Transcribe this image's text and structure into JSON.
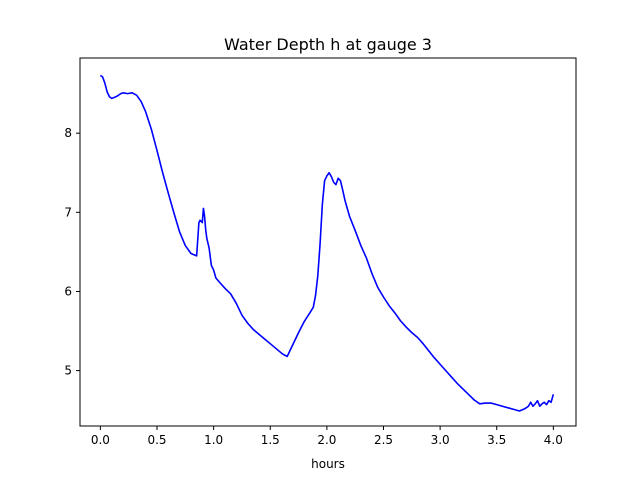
{
  "chart_data": {
    "type": "line",
    "title": "Water Depth h at gauge 3",
    "xlabel": "hours",
    "ylabel": "",
    "xlim": [
      -0.18,
      4.2
    ],
    "ylim": [
      4.3,
      8.95
    ],
    "xticks": [
      0.0,
      0.5,
      1.0,
      1.5,
      2.0,
      2.5,
      3.0,
      3.5,
      4.0
    ],
    "xtick_labels": [
      "0.0",
      "0.5",
      "1.0",
      "1.5",
      "2.0",
      "2.5",
      "3.0",
      "3.5",
      "4.0"
    ],
    "yticks": [
      5,
      6,
      7,
      8
    ],
    "ytick_labels": [
      "5",
      "6",
      "7",
      "8"
    ],
    "grid": false,
    "series": [
      {
        "color": "#0000ff",
        "x": [
          0.0,
          0.02,
          0.04,
          0.06,
          0.08,
          0.1,
          0.12,
          0.15,
          0.18,
          0.2,
          0.24,
          0.28,
          0.32,
          0.36,
          0.4,
          0.45,
          0.5,
          0.55,
          0.6,
          0.65,
          0.7,
          0.75,
          0.8,
          0.85,
          0.87,
          0.88,
          0.9,
          0.91,
          0.92,
          0.93,
          0.94,
          0.96,
          0.98,
          1.0,
          1.02,
          1.05,
          1.1,
          1.15,
          1.2,
          1.25,
          1.3,
          1.35,
          1.4,
          1.45,
          1.5,
          1.55,
          1.6,
          1.62,
          1.65,
          1.7,
          1.75,
          1.8,
          1.85,
          1.88,
          1.9,
          1.92,
          1.94,
          1.96,
          1.98,
          2.0,
          2.02,
          2.04,
          2.06,
          2.08,
          2.1,
          2.12,
          2.14,
          2.16,
          2.18,
          2.2,
          2.25,
          2.3,
          2.35,
          2.4,
          2.45,
          2.5,
          2.55,
          2.6,
          2.65,
          2.7,
          2.75,
          2.8,
          2.85,
          2.9,
          2.95,
          3.0,
          3.05,
          3.1,
          3.15,
          3.2,
          3.25,
          3.3,
          3.35,
          3.4,
          3.45,
          3.5,
          3.55,
          3.6,
          3.65,
          3.7,
          3.75,
          3.78,
          3.8,
          3.82,
          3.84,
          3.86,
          3.88,
          3.9,
          3.92,
          3.94,
          3.96,
          3.98,
          4.0
        ],
        "y": [
          8.73,
          8.71,
          8.63,
          8.52,
          8.46,
          8.44,
          8.45,
          8.47,
          8.5,
          8.51,
          8.5,
          8.51,
          8.48,
          8.4,
          8.27,
          8.05,
          7.78,
          7.5,
          7.24,
          6.99,
          6.75,
          6.58,
          6.48,
          6.45,
          6.87,
          6.9,
          6.87,
          7.05,
          6.95,
          6.78,
          6.67,
          6.55,
          6.33,
          6.27,
          6.17,
          6.12,
          6.04,
          5.97,
          5.85,
          5.7,
          5.6,
          5.52,
          5.46,
          5.4,
          5.34,
          5.28,
          5.22,
          5.2,
          5.18,
          5.33,
          5.48,
          5.62,
          5.73,
          5.8,
          5.95,
          6.2,
          6.6,
          7.1,
          7.4,
          7.46,
          7.5,
          7.45,
          7.38,
          7.35,
          7.43,
          7.4,
          7.28,
          7.15,
          7.05,
          6.95,
          6.77,
          6.58,
          6.42,
          6.22,
          6.05,
          5.93,
          5.82,
          5.73,
          5.63,
          5.55,
          5.48,
          5.42,
          5.34,
          5.25,
          5.16,
          5.08,
          5.0,
          4.92,
          4.84,
          4.77,
          4.7,
          4.63,
          4.58,
          4.59,
          4.59,
          4.57,
          4.55,
          4.53,
          4.51,
          4.49,
          4.52,
          4.55,
          4.6,
          4.55,
          4.58,
          4.62,
          4.55,
          4.58,
          4.6,
          4.57,
          4.62,
          4.6,
          4.7
        ]
      }
    ]
  }
}
